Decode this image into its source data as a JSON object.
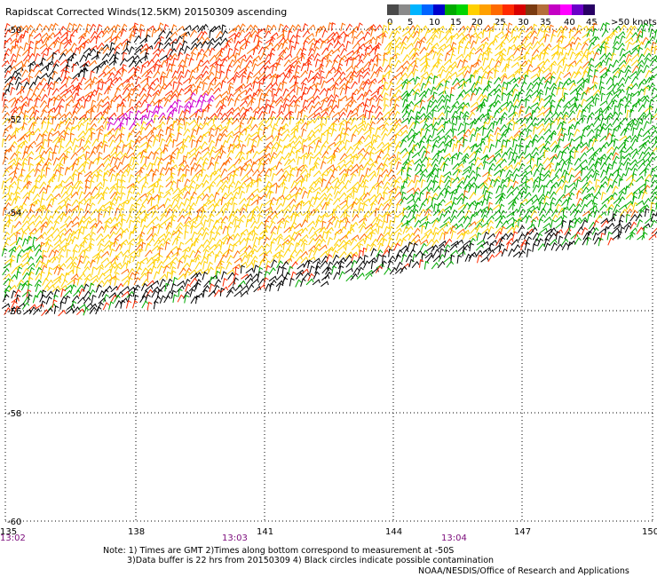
{
  "title": "Rapidscat Corrected Winds(12.5KM) 20150309 ascending",
  "scale": {
    "colors": [
      "#4a4a4a",
      "#8a8a8a",
      "#00b4ff",
      "#0064ff",
      "#0000cc",
      "#00aa00",
      "#00d400",
      "#ffd000",
      "#ffa000",
      "#ff6a00",
      "#ff2a00",
      "#d80000",
      "#7a3a10",
      "#b46e3a",
      "#c400c4",
      "#ff00ff",
      "#6a00c8",
      "#280064"
    ],
    "labels": [
      "0",
      "5",
      "10",
      "15",
      "20",
      "25",
      "30",
      "35",
      "40",
      "45",
      ">50 knots"
    ]
  },
  "axes": {
    "lat_labels": [
      "-50",
      "-52",
      "-54",
      "-56",
      "-58",
      "-60"
    ],
    "lon_labels": [
      "135",
      "138",
      "141",
      "144",
      "147",
      "150"
    ],
    "time_labels": [
      "13:02",
      "13:03",
      "13:04"
    ]
  },
  "notes": [
    "Note: 1) Times are GMT 2)Times along bottom correspond to measurement at -50S",
    "3)Data buffer is 22 hrs from 20150309 4) Black circles indicate possible contamination"
  ],
  "credit": "NOAA/NESDIS/Office of Research and Applications",
  "wind_regions": [
    {
      "name": "black-nw",
      "color": "#000000"
    },
    {
      "name": "purple-nw",
      "color": "#d000d0"
    },
    {
      "name": "orange-north",
      "color": "#ff6a00"
    },
    {
      "name": "red-north",
      "color": "#ff2a00"
    },
    {
      "name": "yellow-center",
      "color": "#ffd000"
    },
    {
      "name": "green-east",
      "color": "#00aa00"
    },
    {
      "name": "black-south",
      "color": "#000000"
    }
  ]
}
